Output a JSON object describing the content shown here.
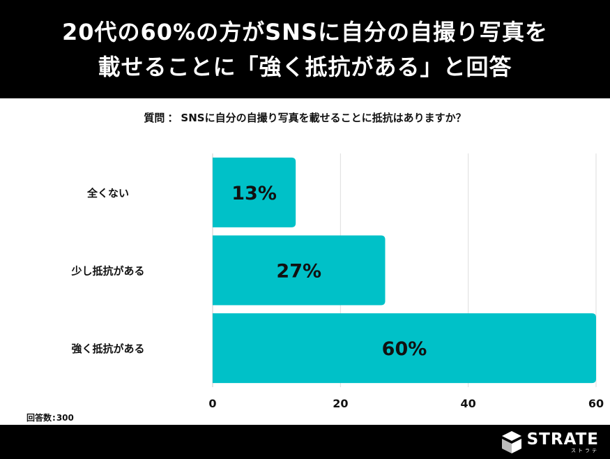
{
  "header": {
    "title_line1": "20代の60%の方がSNSに自分の自撮り写真を",
    "title_line2": "載せることに「強く抵抗がある」と回答"
  },
  "question": {
    "label": "質問",
    "separator": "：",
    "text": "SNSに自分の自撮り写真を載せることに抵抗はありますか？"
  },
  "response_count": {
    "label": "回答数",
    "separator": ":",
    "value": "300"
  },
  "logo": {
    "text": "STRATE",
    "subtext": "ストラテ",
    "icon": "strate-logo-icon"
  },
  "colors": {
    "bar": "#00c1c8",
    "header_bg": "#000000",
    "grid": "#dddddd",
    "text": "#111111"
  },
  "chart_data": {
    "type": "bar",
    "orientation": "horizontal",
    "categories": [
      "全くない",
      "少し抵抗がある",
      "強く抵抗がある"
    ],
    "values": [
      13,
      27,
      60
    ],
    "value_labels": [
      "13%",
      "27%",
      "60%"
    ],
    "xlim": [
      0,
      60
    ],
    "xticks": [
      0,
      20,
      40,
      60
    ],
    "grid": true,
    "legend": "none"
  }
}
